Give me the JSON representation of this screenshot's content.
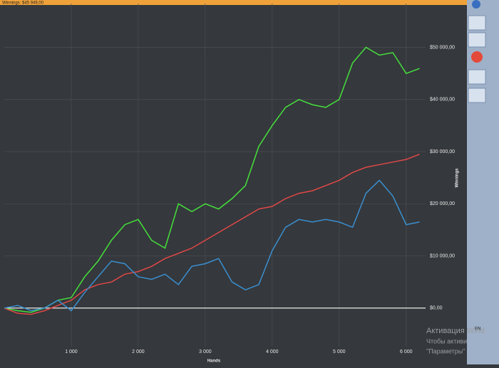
{
  "chart_data": {
    "type": "line",
    "title": "Winnings: $45 949,00",
    "x_label": "Hands",
    "y_label": "Winnings",
    "x": [
      0,
      200,
      400,
      600,
      800,
      1000,
      1200,
      1400,
      1600,
      1800,
      2000,
      2200,
      2400,
      2600,
      2800,
      3000,
      3200,
      3400,
      3600,
      3800,
      4000,
      4200,
      4400,
      4600,
      4800,
      5000,
      5200,
      5400,
      5600,
      5800,
      6000,
      6200
    ],
    "series": [
      {
        "color": "#45e03c",
        "values": [
          0,
          -500,
          -800,
          0,
          1500,
          2000,
          6000,
          9000,
          13000,
          16000,
          17000,
          13000,
          11500,
          20000,
          18500,
          20000,
          19000,
          21000,
          23500,
          31000,
          35000,
          38500,
          40000,
          39000,
          38500,
          40000,
          47000,
          50000,
          48500,
          49000,
          45000,
          45949
        ]
      },
      {
        "color": "#e04848",
        "values": [
          0,
          -1000,
          -1200,
          -500,
          500,
          1500,
          3500,
          4500,
          5000,
          6500,
          7000,
          8000,
          9500,
          10500,
          11500,
          13000,
          14500,
          16000,
          17500,
          19000,
          19500,
          21000,
          22000,
          22500,
          23500,
          24500,
          26000,
          27000,
          27500,
          28000,
          28500,
          29500
        ]
      },
      {
        "color": "#3a8fd0",
        "values": [
          0,
          500,
          -500,
          0,
          1500,
          -500,
          3000,
          6000,
          9000,
          8500,
          6000,
          5500,
          6500,
          4500,
          8000,
          8500,
          9500,
          5000,
          3500,
          4500,
          11000,
          15500,
          17000,
          16500,
          17000,
          16500,
          15500,
          22000,
          24500,
          21500,
          16000,
          16500
        ]
      }
    ],
    "xlim": [
      0,
      6290
    ],
    "ylim": [
      -7400,
      58400
    ],
    "xticks": [
      {
        "value": 1000,
        "label": "1 000"
      },
      {
        "value": 2000,
        "label": "2 000"
      },
      {
        "value": 3000,
        "label": "3 000"
      },
      {
        "value": 4000,
        "label": "4 000"
      },
      {
        "value": 5000,
        "label": "5 000"
      },
      {
        "value": 6000,
        "label": "6 000"
      }
    ],
    "yticks": [
      {
        "value": 0,
        "label": "$0,00"
      },
      {
        "value": 10000,
        "label": "$10 000,00"
      },
      {
        "value": 20000,
        "label": "$20 000,00"
      },
      {
        "value": 30000,
        "label": "$30 000,00"
      },
      {
        "value": 40000,
        "label": "$40 000,00"
      },
      {
        "value": 50000,
        "label": "$50 000,00"
      }
    ],
    "grid": true
  },
  "overlay": {
    "lang": "EN",
    "watermark": [
      "Активация Wind",
      "Чтобы активи",
      "\"Параметры\""
    ]
  }
}
